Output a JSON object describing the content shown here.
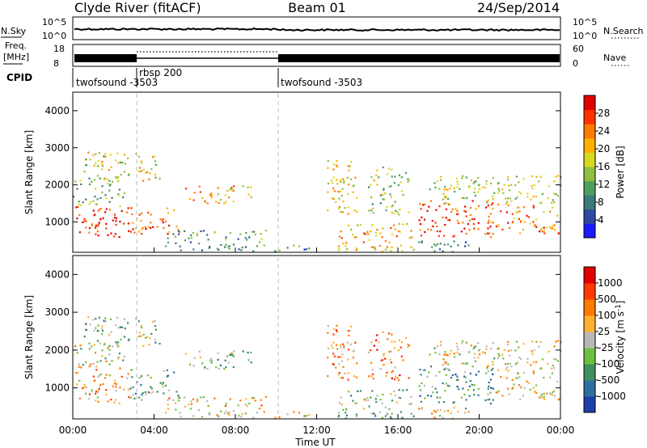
{
  "header": {
    "station": "Clyde River (fitACF)",
    "beam": "Beam 01",
    "date": "24/Sep/2014"
  },
  "status_panels": {
    "nsky_label": "N.Sky",
    "nsearch_label": "N.Search",
    "freq_label_line1": "Freq.",
    "freq_label_line2": "[MHz]",
    "nave_label": "Nave",
    "cpid_label": "CPID",
    "nsky_ticks": [
      "10^5",
      "10^0"
    ],
    "nsearch_ticks": [
      "10^5",
      "10^0"
    ],
    "freq_ticks": [
      "18",
      "8"
    ],
    "nave_ticks": [
      "60",
      "0"
    ],
    "cpid_segments": [
      {
        "label": "twofsound -3503",
        "start_h": 0,
        "end_h": 3.2
      },
      {
        "label": "rbsp 200",
        "start_h": 3.2,
        "end_h": 10.1
      },
      {
        "label": "twofsound -3503",
        "start_h": 10.1,
        "end_h": 24
      }
    ]
  },
  "chart_data": [
    {
      "type": "heatmap",
      "title": "",
      "xlabel": "Time UT",
      "ylabel": "Slant Range [km]",
      "xlim": [
        0,
        24
      ],
      "ylim": [
        180,
        4500
      ],
      "x_ticks": [
        "00:00",
        "04:00",
        "08:00",
        "12:00",
        "16:00",
        "20:00",
        "00:00"
      ],
      "y_ticks": [
        1000,
        2000,
        3000,
        4000
      ],
      "colorbar": {
        "label": "Power [dB]",
        "ticks": [
          4,
          8,
          12,
          16,
          20,
          24,
          28
        ],
        "range": [
          0,
          30
        ],
        "colors": [
          "#1a1aff",
          "#2e4aa0",
          "#3a7a7a",
          "#4f9f5f",
          "#8fbf3f",
          "#d8d820",
          "#ffb000",
          "#ff7a00",
          "#ff3300",
          "#e00000"
        ]
      },
      "regions": [
        {
          "t0": 0.0,
          "t1": 2.8,
          "r0": 600,
          "r1": 1500,
          "level": 27
        },
        {
          "t0": 0.0,
          "t1": 2.5,
          "r0": 1400,
          "r1": 2200,
          "level": 12
        },
        {
          "t0": 2.8,
          "t1": 5.3,
          "r0": 700,
          "r1": 1400,
          "level": 24
        },
        {
          "t0": 0.5,
          "t1": 4.3,
          "r0": 2100,
          "r1": 2900,
          "level": 17
        },
        {
          "t0": 5.5,
          "t1": 8.8,
          "r0": 1500,
          "r1": 2000,
          "level": 19
        },
        {
          "t0": 4.5,
          "t1": 9.5,
          "r0": 230,
          "r1": 800,
          "level": 10
        },
        {
          "t0": 9.7,
          "t1": 12.0,
          "r0": 200,
          "r1": 400,
          "level": 8
        },
        {
          "t0": 12.5,
          "t1": 14.0,
          "r0": 1200,
          "r1": 2800,
          "level": 18
        },
        {
          "t0": 14.5,
          "t1": 16.5,
          "r0": 1200,
          "r1": 2500,
          "level": 14
        },
        {
          "t0": 13.0,
          "t1": 16.8,
          "r0": 200,
          "r1": 1000,
          "level": 19
        },
        {
          "t0": 17.0,
          "t1": 20.8,
          "r0": 600,
          "r1": 1600,
          "level": 26
        },
        {
          "t0": 20.8,
          "t1": 24.0,
          "r0": 700,
          "r1": 1500,
          "level": 22
        },
        {
          "t0": 17.5,
          "t1": 24.0,
          "r0": 1500,
          "r1": 2300,
          "level": 15
        },
        {
          "t0": 16.5,
          "t1": 19.5,
          "r0": 200,
          "r1": 500,
          "level": 6
        }
      ]
    },
    {
      "type": "heatmap",
      "title": "",
      "xlabel": "Time UT",
      "ylabel": "Slant Range [km]",
      "xlim": [
        0,
        24
      ],
      "ylim": [
        180,
        4500
      ],
      "x_ticks": [
        "00:00",
        "04:00",
        "08:00",
        "12:00",
        "16:00",
        "20:00",
        "00:00"
      ],
      "y_ticks": [
        1000,
        2000,
        3000,
        4000
      ],
      "colorbar": {
        "label": "Velocity [m s^-1]",
        "ticks": [
          "1000",
          "500",
          "100",
          "25",
          "-25",
          "-100",
          "-500",
          "-1000"
        ],
        "range": [
          -1000,
          1000
        ],
        "colors": [
          "#1f3fa8",
          "#2f6fa0",
          "#3f8f5f",
          "#6fbf3f",
          "#b8b8b8",
          "#ffb030",
          "#ff7a00",
          "#ff3a00",
          "#e00000"
        ]
      },
      "regions": [
        {
          "t0": 0.0,
          "t1": 2.8,
          "r0": 600,
          "r1": 1500,
          "level": 250
        },
        {
          "t0": 0.0,
          "t1": 2.5,
          "r0": 1500,
          "r1": 2200,
          "level": 20
        },
        {
          "t0": 2.8,
          "t1": 5.3,
          "r0": 700,
          "r1": 1500,
          "level": -300
        },
        {
          "t0": 0.5,
          "t1": 4.3,
          "r0": 2100,
          "r1": 2900,
          "level": -150
        },
        {
          "t0": 5.5,
          "t1": 8.8,
          "r0": 1500,
          "r1": 2000,
          "level": -300
        },
        {
          "t0": 4.5,
          "t1": 9.5,
          "r0": 230,
          "r1": 800,
          "level": 150
        },
        {
          "t0": 9.7,
          "t1": 12.0,
          "r0": 200,
          "r1": 400,
          "level": 30
        },
        {
          "t0": 12.5,
          "t1": 14.0,
          "r0": 1200,
          "r1": 2800,
          "level": 350
        },
        {
          "t0": 14.5,
          "t1": 16.5,
          "r0": 1200,
          "r1": 2500,
          "level": 450
        },
        {
          "t0": 13.0,
          "t1": 16.8,
          "r0": 200,
          "r1": 1000,
          "level": -250
        },
        {
          "t0": 17.0,
          "t1": 20.8,
          "r0": 600,
          "r1": 1600,
          "level": -400
        },
        {
          "t0": 20.8,
          "t1": 24.0,
          "r0": 700,
          "r1": 1500,
          "level": 120
        },
        {
          "t0": 17.5,
          "t1": 24.0,
          "r0": 1500,
          "r1": 2300,
          "level": 20
        },
        {
          "t0": 16.5,
          "t1": 19.5,
          "r0": 200,
          "r1": 500,
          "level": 60
        }
      ]
    }
  ]
}
